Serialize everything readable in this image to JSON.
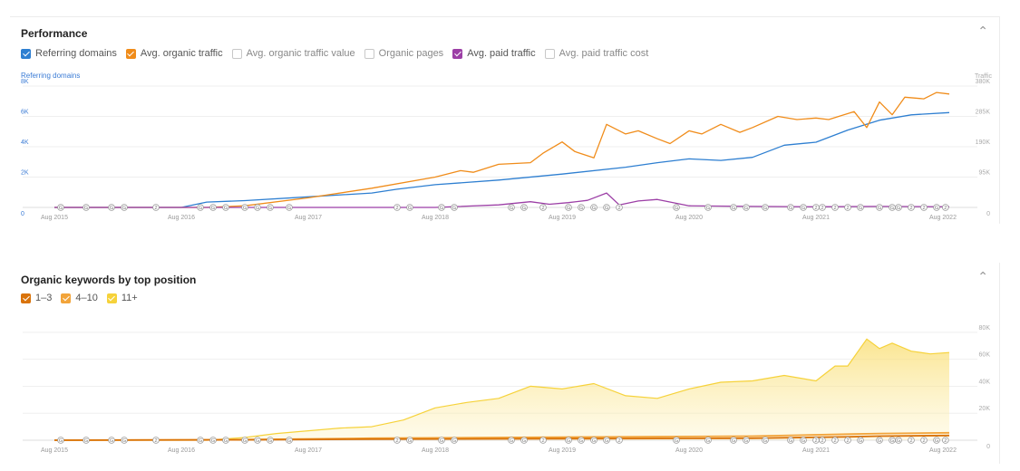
{
  "performance": {
    "title": "Performance",
    "collapse_icon": "chevron-up-icon",
    "legend": [
      {
        "label": "Referring domains",
        "checked": true,
        "color": "#2e7fd1"
      },
      {
        "label": "Avg. organic traffic",
        "checked": true,
        "color": "#f08c1a"
      },
      {
        "label": "Avg. organic traffic value",
        "checked": false,
        "color": "#c8c8c8"
      },
      {
        "label": "Organic pages",
        "checked": false,
        "color": "#c8c8c8"
      },
      {
        "label": "Avg. paid traffic",
        "checked": true,
        "color": "#9c3fa6"
      },
      {
        "label": "Avg. paid traffic cost",
        "checked": false,
        "color": "#c8c8c8"
      }
    ]
  },
  "keywords": {
    "title": "Organic keywords by top position",
    "collapse_icon": "chevron-up-icon",
    "legend": [
      {
        "label": "1–3",
        "checked": true,
        "color": "#d9730a"
      },
      {
        "label": "4–10",
        "checked": true,
        "color": "#f2a43a"
      },
      {
        "label": "11+",
        "checked": true,
        "color": "#f6d23a"
      }
    ]
  },
  "chart_data": [
    {
      "type": "line",
      "title": "Performance",
      "left_axis_label": "Referring domains",
      "right_axis_label": "Traffic",
      "x_ticks": [
        "Aug 2015",
        "Aug 2016",
        "Aug 2017",
        "Aug 2018",
        "Aug 2019",
        "Aug 2020",
        "Aug 2021",
        "Aug 2022"
      ],
      "x_range": [
        2015.25,
        2022.7
      ],
      "ylim_left": [
        0,
        8000
      ],
      "yticks_left": [
        "0",
        "2K",
        "4K",
        "6K",
        "8K"
      ],
      "ylim_right": [
        0,
        380000
      ],
      "yticks_right": [
        "0",
        "95K",
        "190K",
        "285K",
        "380K"
      ],
      "grid": true,
      "series": [
        {
          "name": "Referring domains",
          "axis": "left",
          "color": "#2e7fd1",
          "x": [
            2015.5,
            2016.5,
            2016.7,
            2017.0,
            2017.5,
            2018.0,
            2018.2,
            2018.5,
            2019.0,
            2019.5,
            2020.0,
            2020.25,
            2020.5,
            2020.75,
            2021.0,
            2021.25,
            2021.5,
            2021.75,
            2022.0,
            2022.25,
            2022.55
          ],
          "y": [
            0,
            0,
            350,
            450,
            700,
            950,
            1200,
            1500,
            1800,
            2200,
            2650,
            2950,
            3200,
            3100,
            3300,
            4100,
            4300,
            5100,
            5750,
            6100,
            6250
          ]
        },
        {
          "name": "Avg. organic traffic",
          "axis": "right",
          "color": "#f08c1a",
          "x": [
            2015.5,
            2016.7,
            2017.0,
            2017.5,
            2018.0,
            2018.5,
            2018.7,
            2018.8,
            2019.0,
            2019.25,
            2019.35,
            2019.5,
            2019.6,
            2019.75,
            2019.85,
            2020.0,
            2020.1,
            2020.25,
            2020.35,
            2020.5,
            2020.6,
            2020.75,
            2020.9,
            2021.0,
            2021.2,
            2021.35,
            2021.5,
            2021.6,
            2021.8,
            2021.9,
            2022.0,
            2022.1,
            2022.2,
            2022.35,
            2022.45,
            2022.55
          ],
          "y": [
            0,
            0,
            5000,
            30000,
            60000,
            95000,
            115000,
            110000,
            135000,
            140000,
            170000,
            205000,
            175000,
            155000,
            260000,
            230000,
            240000,
            215000,
            200000,
            240000,
            230000,
            260000,
            235000,
            250000,
            285000,
            275000,
            280000,
            275000,
            300000,
            250000,
            330000,
            290000,
            345000,
            340000,
            360000,
            355000
          ]
        },
        {
          "name": "Avg. paid traffic",
          "axis": "right",
          "color": "#9c3fa6",
          "x": [
            2015.5,
            2018.5,
            2019.0,
            2019.25,
            2019.4,
            2019.55,
            2019.7,
            2019.85,
            2019.95,
            2020.1,
            2020.25,
            2020.5,
            2021.0,
            2021.5,
            2022.0,
            2022.55
          ],
          "y": [
            0,
            0,
            8000,
            18000,
            10000,
            15000,
            22000,
            45000,
            8000,
            20000,
            25000,
            5000,
            3000,
            2000,
            3000,
            2000
          ]
        }
      ]
    },
    {
      "type": "area",
      "title": "Organic keywords by top position",
      "x_ticks": [
        "Aug 2015",
        "Aug 2016",
        "Aug 2017",
        "Aug 2018",
        "Aug 2019",
        "Aug 2020",
        "Aug 2021",
        "Aug 2022"
      ],
      "x_range": [
        2015.25,
        2022.7
      ],
      "ylim": [
        0,
        90000
      ],
      "yticks": [
        "0",
        "20K",
        "40K",
        "60K",
        "80K"
      ],
      "grid": true,
      "series": [
        {
          "name": "11+",
          "color": "#f6d23a",
          "x": [
            2015.5,
            2016.7,
            2017.0,
            2017.25,
            2017.5,
            2017.75,
            2018.0,
            2018.25,
            2018.5,
            2018.75,
            2019.0,
            2019.25,
            2019.5,
            2019.75,
            2020.0,
            2020.25,
            2020.5,
            2020.75,
            2021.0,
            2021.25,
            2021.5,
            2021.65,
            2021.75,
            2021.9,
            2022.0,
            2022.1,
            2022.25,
            2022.4,
            2022.55
          ],
          "y": [
            0,
            0,
            2000,
            5000,
            7000,
            9000,
            10000,
            15000,
            24000,
            28000,
            31000,
            40000,
            38000,
            42000,
            33000,
            31000,
            38000,
            43000,
            44000,
            48000,
            44000,
            55000,
            55000,
            75000,
            68000,
            72000,
            66000,
            64000,
            65000
          ]
        },
        {
          "name": "4–10",
          "color": "#f2a43a",
          "x": [
            2015.5,
            2017.0,
            2018.0,
            2019.0,
            2020.0,
            2021.0,
            2021.75,
            2022.0,
            2022.55
          ],
          "y": [
            0,
            500,
            1500,
            2000,
            2500,
            3000,
            4500,
            5000,
            5500
          ]
        },
        {
          "name": "1–3",
          "color": "#d9730a",
          "x": [
            2015.5,
            2017.0,
            2018.0,
            2019.0,
            2020.0,
            2021.0,
            2021.75,
            2022.0,
            2022.55
          ],
          "y": [
            0,
            300,
            800,
            1000,
            1200,
            1500,
            2500,
            3000,
            3500
          ]
        }
      ],
      "annotations": {
        "x": [
          2015.55,
          2015.75,
          2015.95,
          2016.05,
          2016.3,
          2016.65,
          2016.75,
          2016.85,
          2017.0,
          2017.1,
          2017.2,
          2017.35,
          2018.2,
          2018.3,
          2018.55,
          2018.65,
          2019.1,
          2019.2,
          2019.35,
          2019.55,
          2019.65,
          2019.75,
          2019.85,
          2019.95,
          2020.4,
          2020.65,
          2020.85,
          2020.95,
          2021.1,
          2021.3,
          2021.4,
          2021.5,
          2021.55,
          2021.65,
          2021.75,
          2021.85,
          2022.0,
          2022.1,
          2022.15,
          2022.25,
          2022.35,
          2022.45,
          2022.52
        ],
        "labels": [
          "G",
          "G",
          "G",
          "G",
          "2",
          "G",
          "G",
          "G",
          "G",
          "G",
          "G",
          "G",
          "2",
          "G",
          "G",
          "G",
          "G",
          "G",
          "2",
          "G",
          "G",
          "G",
          "G",
          "2",
          "G",
          "G",
          "G",
          "G",
          "G",
          "G",
          "G",
          "2",
          "2",
          "2",
          "2",
          "G",
          "G",
          "G",
          "G",
          "2",
          "2",
          "G",
          "2"
        ]
      }
    }
  ]
}
